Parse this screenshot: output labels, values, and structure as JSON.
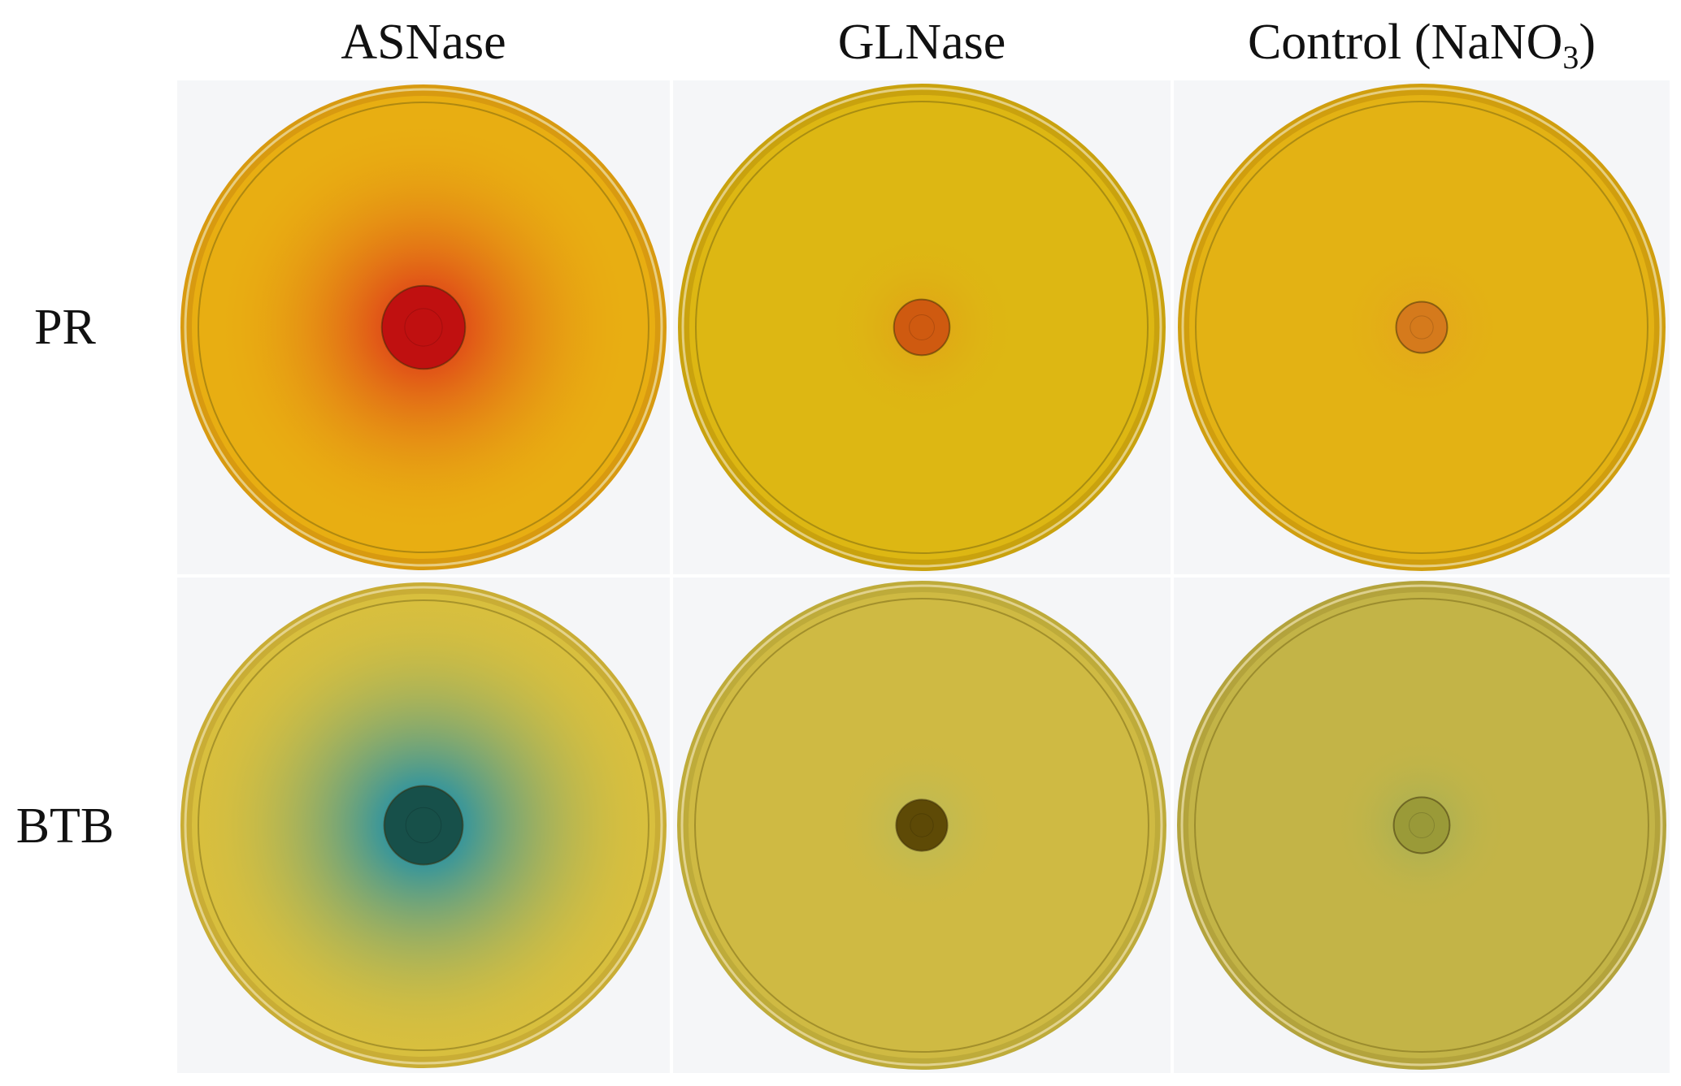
{
  "columns": [
    {
      "label": "ASNase"
    },
    {
      "label": "GLNase"
    },
    {
      "label_main": "Control (NaNO",
      "label_sub": "3",
      "label_end": ")"
    }
  ],
  "rows": [
    {
      "label": "PR"
    },
    {
      "label": "BTB"
    }
  ],
  "plates": [
    {
      "id": "pr-asnase",
      "indicator": "PR",
      "condition": "ASNase",
      "base_color": "#e8ae12",
      "rim_color": "#d89a10",
      "halo_color": "#e04a18",
      "center_color": "#c01010",
      "halo_strength": 1.0,
      "halo_extent": 0.48,
      "colony_extent": 0.09
    },
    {
      "id": "pr-glnase",
      "indicator": "PR",
      "condition": "GLNase",
      "base_color": "#ddb713",
      "rim_color": "#c9a20e",
      "halo_color": "#e39a18",
      "center_color": "#cf5a10",
      "halo_strength": 0.6,
      "halo_extent": 0.22,
      "colony_extent": 0.06
    },
    {
      "id": "pr-control",
      "indicator": "PR",
      "condition": "Control (NaNO3)",
      "base_color": "#e3b214",
      "rim_color": "#d09e0e",
      "halo_color": "#e59c22",
      "center_color": "#d57a1c",
      "halo_strength": 0.5,
      "halo_extent": 0.2,
      "colony_extent": 0.055
    },
    {
      "id": "btb-asnase",
      "indicator": "BTB",
      "condition": "ASNase",
      "base_color": "#d8bf3e",
      "rim_color": "#c9ad35",
      "halo_color": "#2e93a0",
      "center_color": "#17504a",
      "halo_strength": 1.0,
      "halo_extent": 0.55,
      "colony_extent": 0.085
    },
    {
      "id": "btb-glnase",
      "indicator": "BTB",
      "condition": "GLNase",
      "base_color": "#cfba43",
      "rim_color": "#beab3a",
      "halo_color": "#a7b86a",
      "center_color": "#5e4a06",
      "halo_strength": 0.45,
      "halo_extent": 0.2,
      "colony_extent": 0.055
    },
    {
      "id": "btb-control",
      "indicator": "BTB",
      "condition": "Control (NaNO3)",
      "base_color": "#c3b447",
      "rim_color": "#b3a33c",
      "halo_color": "#8fae60",
      "center_color": "#9a9a38",
      "halo_strength": 0.5,
      "halo_extent": 0.2,
      "colony_extent": 0.06
    }
  ]
}
